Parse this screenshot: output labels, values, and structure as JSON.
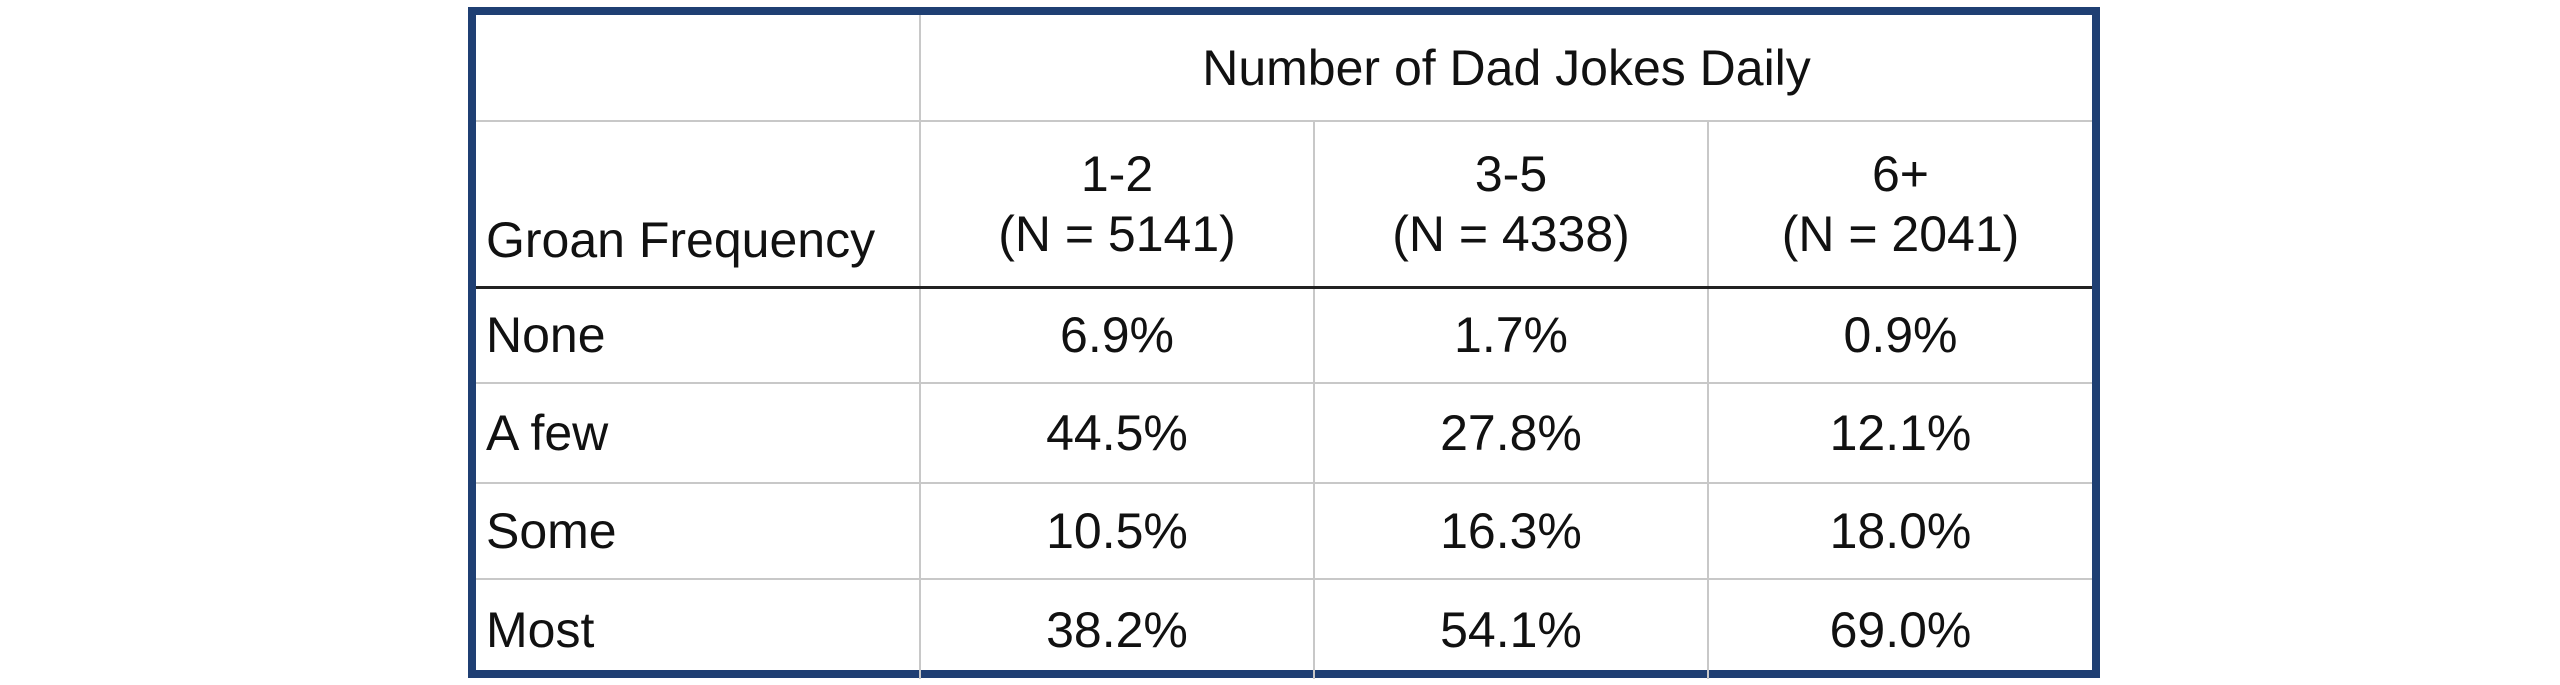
{
  "chart_data": {
    "type": "table",
    "title": "Number of Dad Jokes Daily",
    "row_header": "Groan Frequency",
    "columns": [
      {
        "label": "1-2",
        "n": "(N = 5141)"
      },
      {
        "label": "3-5",
        "n": "(N = 4338)"
      },
      {
        "label": "6+",
        "n": "(N = 2041)"
      }
    ],
    "rows": [
      {
        "label": "None",
        "values": [
          "6.9%",
          "1.7%",
          "0.9%"
        ]
      },
      {
        "label": "A few",
        "values": [
          "44.5%",
          "27.8%",
          "12.1%"
        ]
      },
      {
        "label": "Some",
        "values": [
          "10.5%",
          "16.3%",
          "18.0%"
        ]
      },
      {
        "label": "Most",
        "values": [
          "38.2%",
          "54.1%",
          "69.0%"
        ]
      }
    ]
  },
  "colors": {
    "frame": "#1f3f73",
    "grid": "#c8c8c8",
    "header_rule": "#222222"
  }
}
